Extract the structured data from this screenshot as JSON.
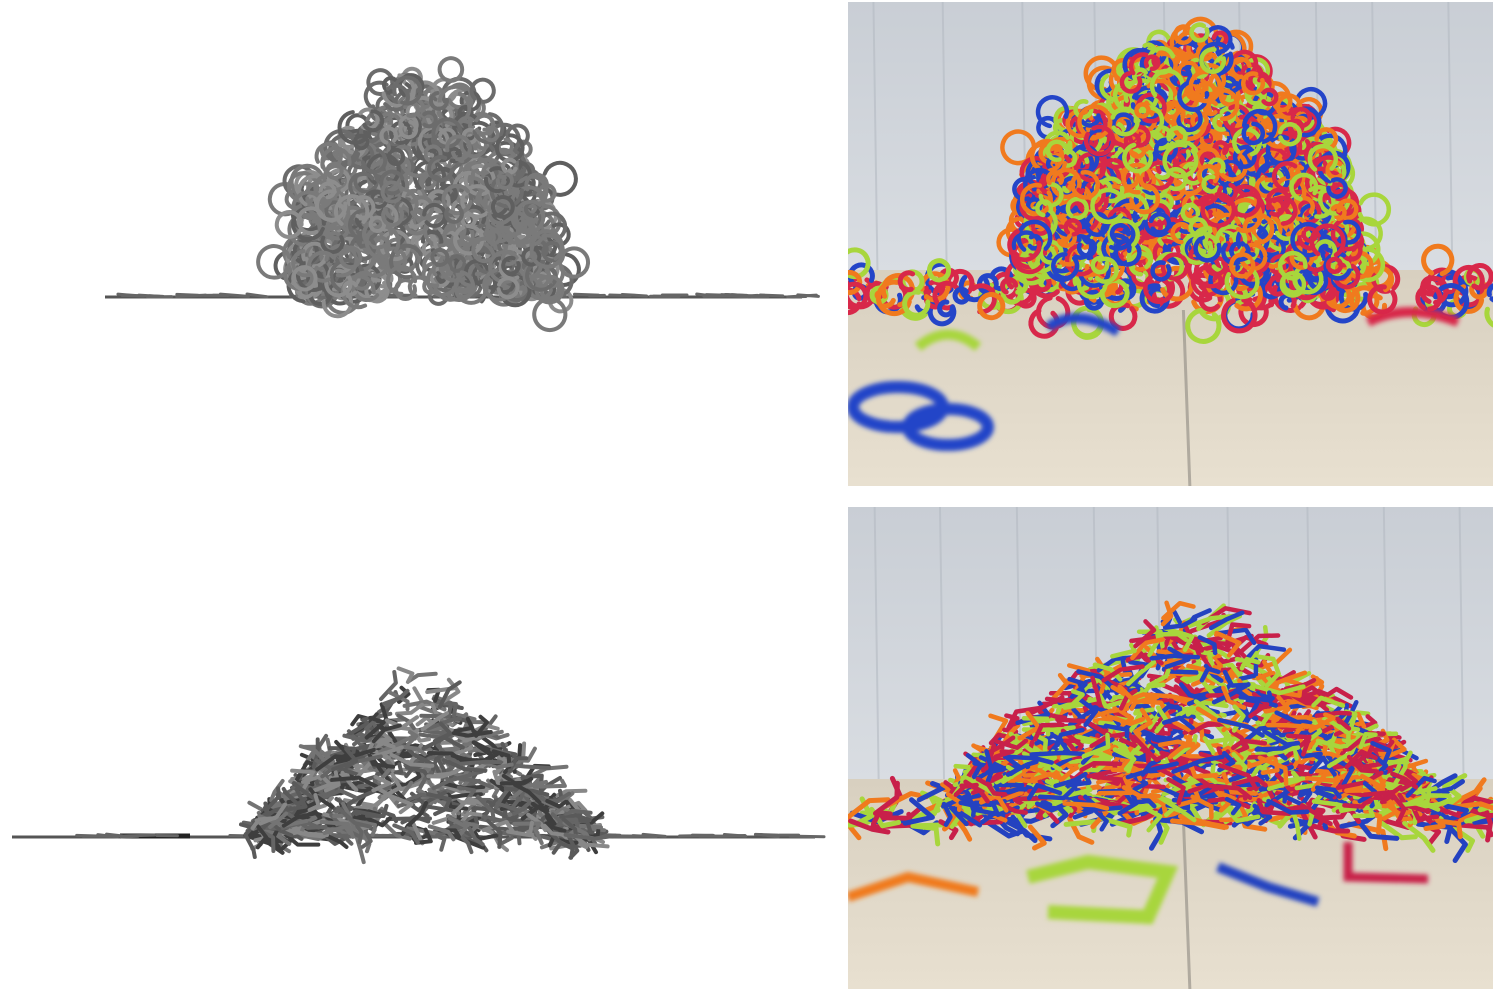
{
  "figure": {
    "panels": [
      {
        "name": "simulation-top",
        "kind": "rendering",
        "shape": "curly-loops",
        "color": "#7a7a7a"
      },
      {
        "name": "photo-top",
        "kind": "photograph",
        "shape": "curly-loops",
        "strand_colors": [
          "#f07a1e",
          "#d8284a",
          "#2445c8",
          "#a8d63c"
        ]
      },
      {
        "name": "simulation-bottom",
        "kind": "rendering",
        "shape": "bent-sticks",
        "color": "#7a7a7a"
      },
      {
        "name": "photo-bottom",
        "kind": "photograph",
        "shape": "bent-sticks",
        "strand_colors": [
          "#f07a1e",
          "#c8204a",
          "#2442c0",
          "#a8d63c"
        ]
      }
    ],
    "background": {
      "wall": "#d9dde2",
      "floor": "#e8e0d0"
    }
  }
}
